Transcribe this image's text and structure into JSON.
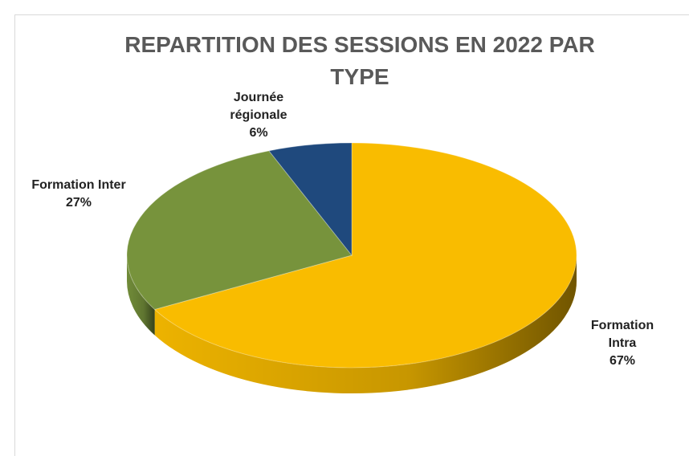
{
  "chart_data": {
    "type": "pie",
    "title": "REPARTITION DES SESSIONS EN 2022 PAR TYPE",
    "categories": [
      "Formation Intra",
      "Formation Inter",
      "Journée régionale"
    ],
    "values": [
      67,
      27,
      6
    ],
    "value_labels": [
      "67%",
      "27%",
      "6%"
    ],
    "colors": [
      "#f9bc00",
      "#77933c",
      "#1f497d"
    ]
  }
}
